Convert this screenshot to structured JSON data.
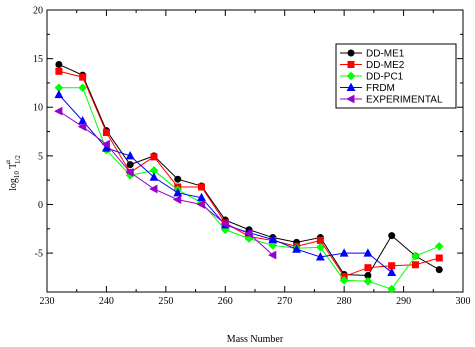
{
  "chart_data": {
    "type": "line",
    "xlabel": "Mass Number",
    "ylabel": {
      "base": "log",
      "base_sub": "10",
      "main": "T",
      "sup": "α",
      "sub": "1/2"
    },
    "xlim": [
      230,
      300
    ],
    "ylim": [
      -9,
      20
    ],
    "xticks": [
      230,
      240,
      250,
      260,
      270,
      280,
      290,
      300
    ],
    "yticks": [
      -5,
      0,
      5,
      10,
      15,
      20
    ],
    "grid": false,
    "legend_position": "top-right",
    "series": [
      {
        "name": "DD-ME1",
        "color": "#000000",
        "marker": "circle",
        "x": [
          232,
          236,
          240,
          244,
          248,
          252,
          256,
          260,
          264,
          268,
          272,
          276,
          280,
          284,
          288,
          292,
          296
        ],
        "y": [
          14.4,
          13.3,
          7.6,
          4.1,
          5.0,
          2.6,
          1.9,
          -1.6,
          -2.6,
          -3.4,
          -3.9,
          -3.4,
          -7.2,
          -7.3,
          -3.2,
          -5.3,
          -6.7
        ]
      },
      {
        "name": "DD-ME2",
        "color": "#ff0000",
        "marker": "square",
        "x": [
          232,
          236,
          240,
          244,
          248,
          252,
          256,
          260,
          264,
          268,
          272,
          276,
          280,
          284,
          288,
          292,
          296
        ],
        "y": [
          13.7,
          13.1,
          7.4,
          3.3,
          4.9,
          1.8,
          1.8,
          -1.9,
          -3.3,
          -3.7,
          -4.3,
          -3.7,
          -7.4,
          -6.5,
          -6.3,
          -6.2,
          -5.5
        ]
      },
      {
        "name": "DD-PC1",
        "color": "#00ff00",
        "marker": "diamond",
        "x": [
          232,
          236,
          240,
          244,
          248,
          252,
          256,
          260,
          264,
          268,
          272,
          276,
          280,
          284,
          288,
          292,
          296
        ],
        "y": [
          12.0,
          12.0,
          5.6,
          3.0,
          3.5,
          1.5,
          0.2,
          -2.6,
          -3.5,
          -4.2,
          -4.5,
          -4.4,
          -7.8,
          -7.9,
          -8.7,
          -5.3,
          -4.3
        ]
      },
      {
        "name": "FRDM",
        "color": "#0000ff",
        "marker": "triangle-up",
        "x": [
          232,
          236,
          240,
          244,
          248,
          252,
          256,
          260,
          264,
          268,
          272,
          276,
          280,
          284,
          288
        ],
        "y": [
          11.3,
          8.6,
          5.8,
          5.0,
          2.8,
          1.2,
          0.7,
          -2.1,
          -2.9,
          -3.6,
          -4.6,
          -5.4,
          -5.0,
          -5.0,
          -7.0
        ]
      },
      {
        "name": "EXPERIMENTAL",
        "color": "#9900cc",
        "marker": "triangle-left",
        "x": [
          232,
          236,
          240,
          244,
          248,
          252,
          256,
          260,
          264,
          268
        ],
        "y": [
          9.6,
          8.0,
          6.2,
          3.3,
          1.6,
          0.5,
          0.0,
          -2.0,
          -3.0,
          -5.2
        ]
      }
    ]
  }
}
